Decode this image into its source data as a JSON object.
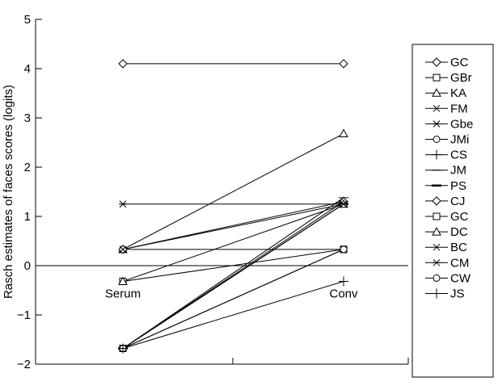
{
  "chart_data": {
    "type": "line",
    "ylabel": "Rasch estimates of faces scores (logits)",
    "xlabel": "",
    "ylim": [
      -2,
      5
    ],
    "yticks": [
      -2,
      -1,
      0,
      1,
      2,
      3,
      4,
      5
    ],
    "categories": [
      "Serum",
      "Conv"
    ],
    "grid": false,
    "legend_position": "right",
    "series": [
      {
        "name": "GC",
        "marker": "diamond",
        "values": [
          4.1,
          4.1
        ]
      },
      {
        "name": "GBr",
        "marker": "square",
        "values": [
          -0.32,
          0.33
        ]
      },
      {
        "name": "KA",
        "marker": "triangle",
        "values": [
          0.33,
          2.68
        ]
      },
      {
        "name": "FM",
        "marker": "x",
        "values": [
          -1.68,
          1.25
        ]
      },
      {
        "name": "Gbe",
        "marker": "asterisk",
        "values": [
          1.25,
          1.25
        ]
      },
      {
        "name": "JMi",
        "marker": "circle",
        "values": [
          0.33,
          0.33
        ]
      },
      {
        "name": "CS",
        "marker": "plus",
        "values": [
          -1.68,
          1.3
        ]
      },
      {
        "name": "JM",
        "marker": "hbar",
        "values": [
          -1.68,
          1.38
        ]
      },
      {
        "name": "PS",
        "marker": "hbar-thick",
        "values": [
          -1.68,
          1.25
        ]
      },
      {
        "name": "CJ",
        "marker": "diamond",
        "values": [
          0.33,
          1.3
        ]
      },
      {
        "name": "GC",
        "marker": "square",
        "values": [
          -1.68,
          0.33
        ]
      },
      {
        "name": "DC",
        "marker": "triangle",
        "values": [
          -0.32,
          1.25
        ]
      },
      {
        "name": "BC",
        "marker": "x",
        "values": [
          0.33,
          1.25
        ]
      },
      {
        "name": "CM",
        "marker": "asterisk",
        "values": [
          -1.68,
          1.25
        ]
      },
      {
        "name": "CW",
        "marker": "circle",
        "values": [
          -1.68,
          0.33
        ]
      },
      {
        "name": "JS",
        "marker": "plus",
        "values": [
          -1.68,
          -0.32
        ]
      }
    ]
  }
}
